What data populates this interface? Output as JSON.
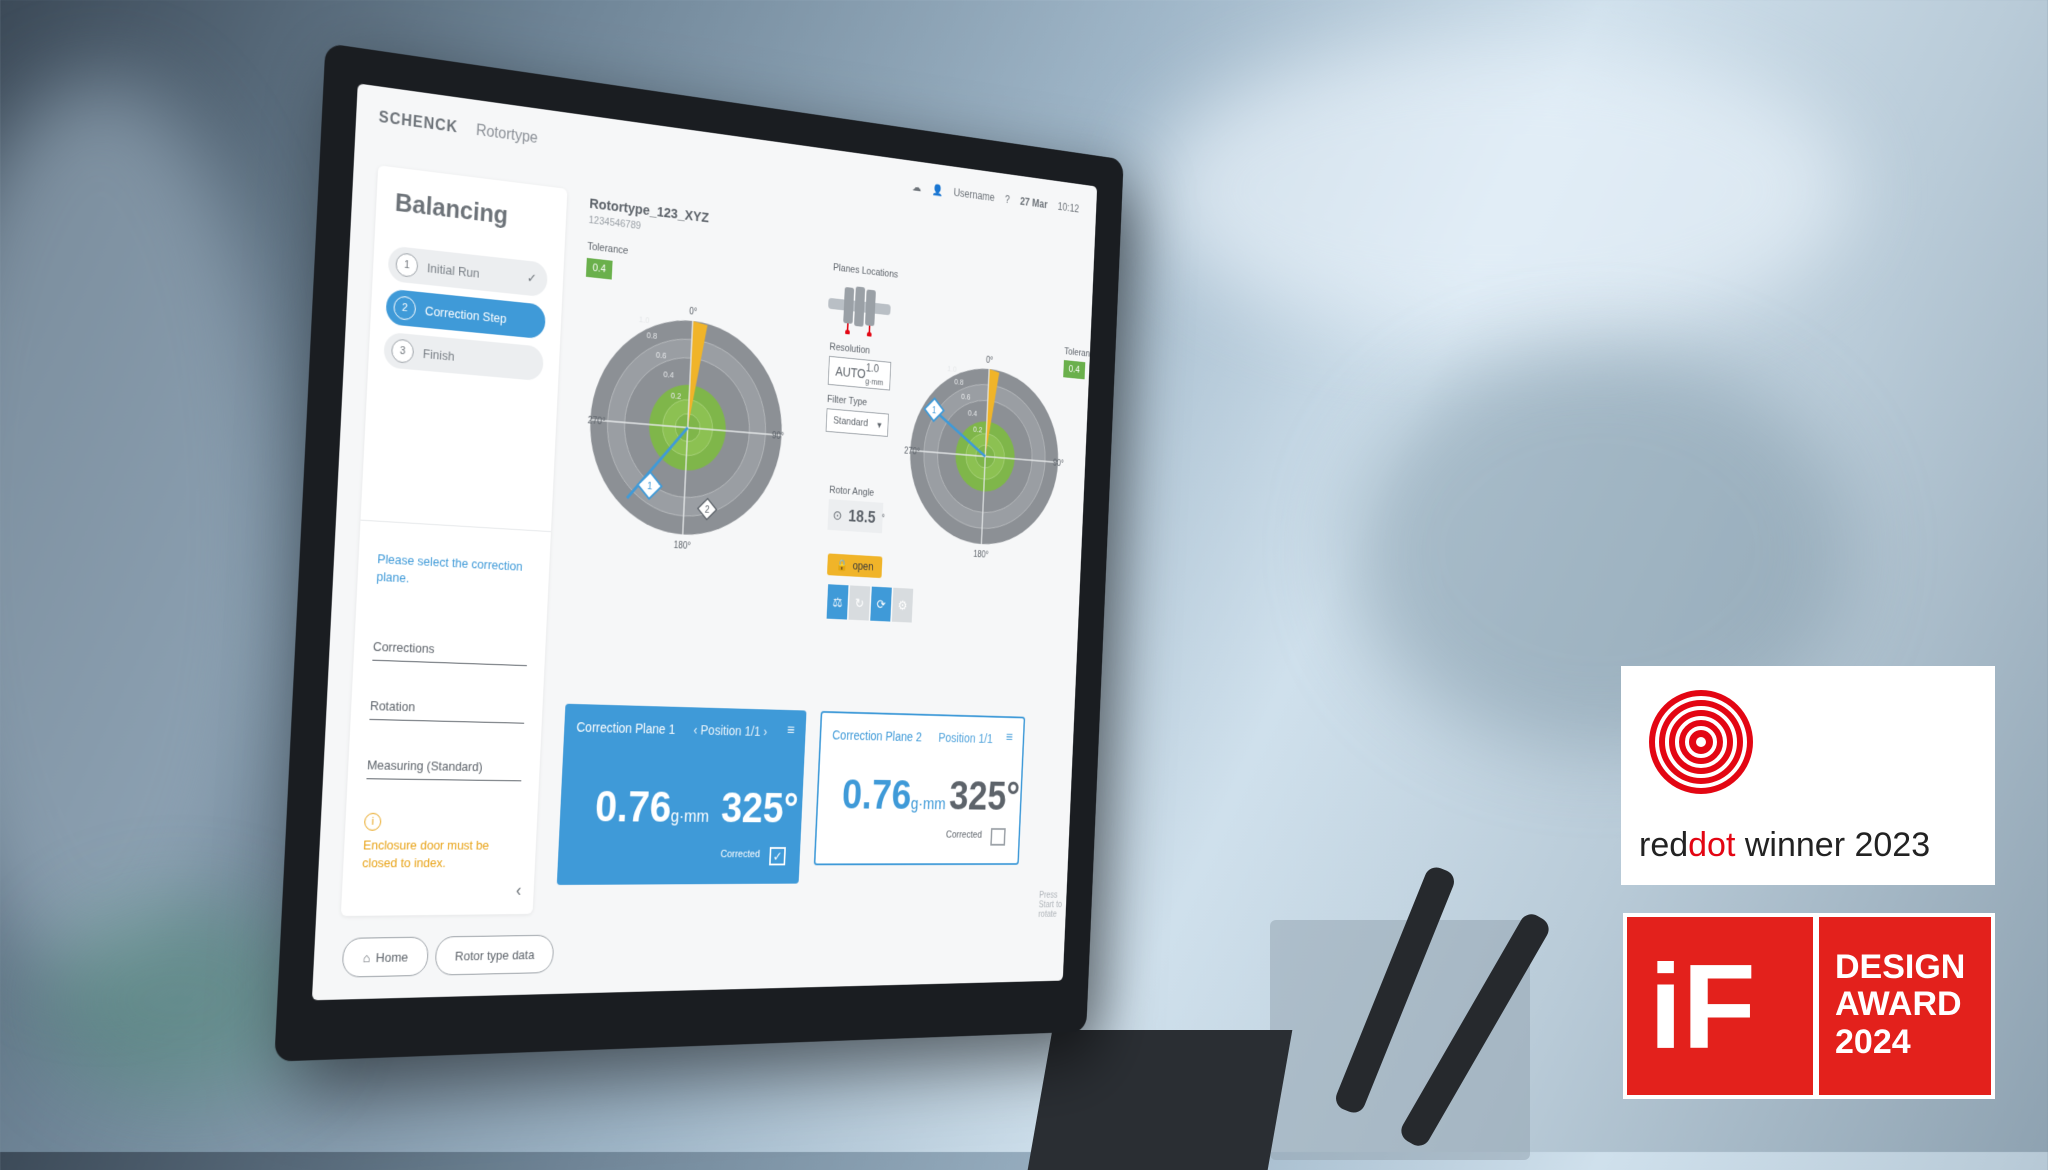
{
  "header": {
    "brand": "SCHENCK",
    "subtitle": "Rotortype",
    "username": "Username",
    "date": "27 Mar",
    "time": "10:12"
  },
  "left_panel": {
    "title": "Balancing",
    "steps": [
      {
        "num": "1",
        "label": "Initial Run",
        "status": "done"
      },
      {
        "num": "2",
        "label": "Correction Step",
        "status": "active"
      },
      {
        "num": "3",
        "label": "Finish",
        "status": "pending"
      }
    ],
    "hint": "Please select the correction plane.",
    "fields": [
      "Corrections",
      "Rotation",
      "Measuring (Standard)"
    ],
    "warning": "Enclosure door must be closed to index."
  },
  "footer": {
    "home": "Home",
    "rotor_data": "Rotor type data",
    "press_hint": "Press Start to rotate"
  },
  "rotor": {
    "name": "Rotortype_123_XYZ",
    "id": "1234546789"
  },
  "tolerance": {
    "label": "Tolerance",
    "value": "0.4"
  },
  "polar_left": {
    "angles": [
      "0°",
      "90°",
      "180°",
      "270°"
    ],
    "rings": [
      "0.2",
      "0.4",
      "0.6",
      "0.8",
      "1.0"
    ],
    "markers": [
      "1",
      "2"
    ]
  },
  "polar_right": {
    "angles": [
      "0°",
      "90°",
      "180°",
      "270°"
    ],
    "rings": [
      "0.2",
      "0.4",
      "0.6",
      "0.8",
      "1.0"
    ],
    "markers": [
      "1"
    ]
  },
  "center": {
    "planes_location": "Planes Locations",
    "resolution_label": "Resolution",
    "resolution_mode": "AUTO",
    "resolution_value": "1.0",
    "resolution_unit": "g·mm",
    "filter_label": "Filter Type",
    "filter_value": "Standard",
    "rotor_angle_label": "Rotor Angle",
    "rotor_angle_value": "18.5",
    "rotor_angle_unit": "°",
    "open_label": "open"
  },
  "plane1": {
    "title": "Correction Plane 1",
    "position": "Position 1/1",
    "value": "0.76",
    "unit": "g·mm",
    "angle": "325°",
    "corrected": "Corrected"
  },
  "plane2": {
    "title": "Correction Plane 2",
    "position": "Position 1/1",
    "value": "0.76",
    "unit": "g·mm",
    "angle": "325°",
    "corrected": "Corrected"
  },
  "awards": {
    "reddot_pre": "red",
    "reddot_dot": "dot",
    "reddot_post": "winner 2023",
    "if_logo": "iF",
    "if_line1": "DESIGN",
    "if_line2": "AWARD",
    "if_line3": "2024"
  },
  "colors": {
    "accent_blue": "#3f9ad8",
    "tolerance_green": "#6ab04c",
    "warning_orange": "#e8a317",
    "reddot_red": "#e30613",
    "if_red": "#e3211c"
  }
}
